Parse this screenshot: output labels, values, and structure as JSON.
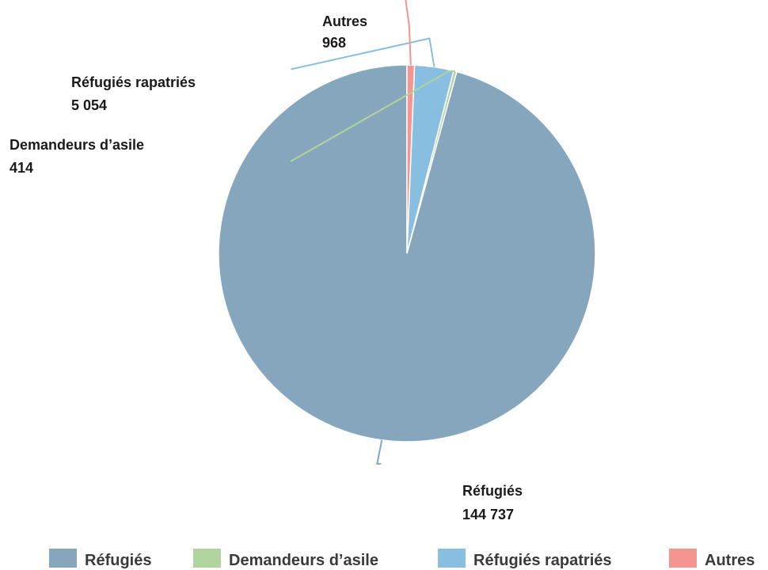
{
  "chart_data": {
    "type": "pie",
    "title": "",
    "categories": [
      "Réfugiés",
      "Demandeurs d’asile",
      "Réfugiés rapatriés",
      "Autres"
    ],
    "values": [
      144737,
      414,
      5054,
      968
    ],
    "value_labels": [
      "144 737",
      "414",
      "5 054",
      "968"
    ],
    "colors": [
      "#85a6bd",
      "#b1d39d",
      "#88bfe0",
      "#f5958f"
    ],
    "legend": "bottom",
    "start_angle": "12 o'clock",
    "direction": "counterclockwise"
  }
}
